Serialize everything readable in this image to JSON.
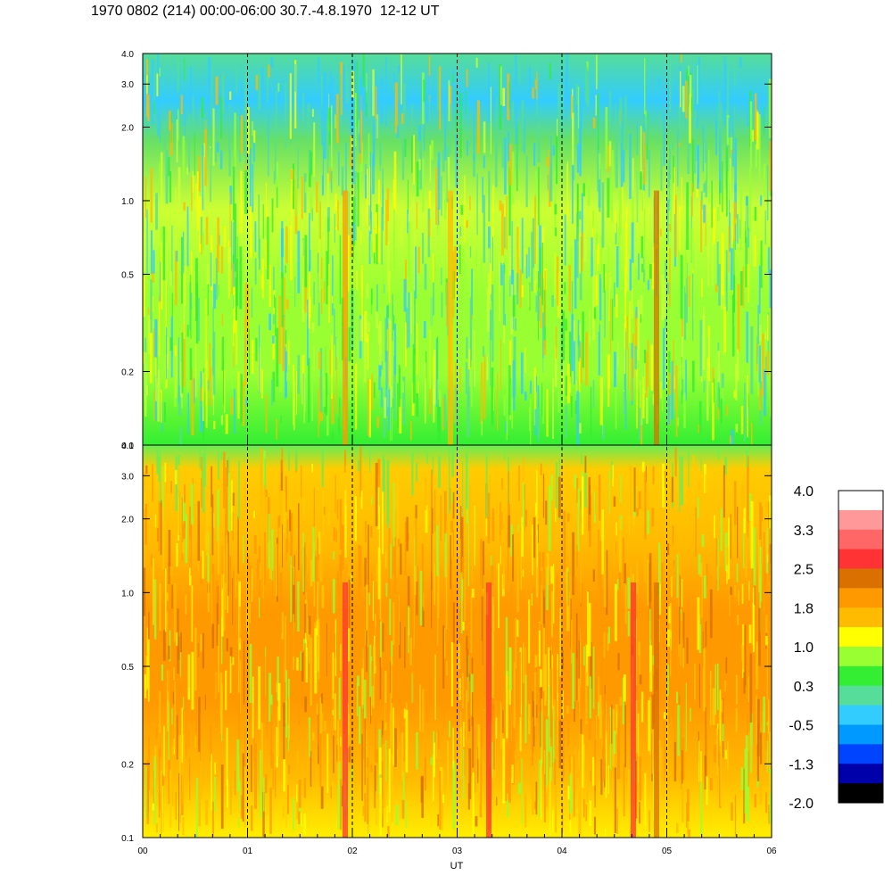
{
  "title": "1970 0802 (214) 00:00-06:00 30.7.-4.8.1970  12-12 UT",
  "chart_data": [
    {
      "type": "heatmap",
      "name": "upper-panel",
      "x_range": [
        "00",
        "06"
      ],
      "y_scale": "log",
      "y_range": [
        0.1,
        4.0
      ],
      "y_ticks": [
        "0.1",
        "0.2",
        "0.5",
        "1.0",
        "2.0",
        "3.0",
        "4.0"
      ],
      "dominant_levels": "green-yellow (0.3 to 1.8), blue near top"
    },
    {
      "type": "heatmap",
      "name": "lower-panel",
      "x_range": [
        "00",
        "06"
      ],
      "y_scale": "log",
      "y_range": [
        0.1,
        4.0
      ],
      "y_ticks": [
        "0.1",
        "0.2",
        "0.5",
        "1.0",
        "2.0",
        "3.0",
        "4.0"
      ],
      "dominant_levels": "yellow-orange (1.0 to 2.5)"
    }
  ],
  "x_axis": {
    "label": "UT",
    "ticks": [
      "00",
      "01",
      "02",
      "03",
      "04",
      "05",
      "06"
    ],
    "dashed_lines_at": [
      1,
      2,
      3,
      4,
      5
    ]
  },
  "colorbar": {
    "labels": [
      "4.0",
      "3.3",
      "2.5",
      "1.8",
      "1.0",
      "0.3",
      "-0.5",
      "-1.3",
      "-2.0"
    ],
    "colors_top_to_bottom": [
      "#ffffff",
      "#ff9999",
      "#ff6666",
      "#ff3333",
      "#d97000",
      "#ff9900",
      "#ffbb00",
      "#ffff00",
      "#99ff33",
      "#33ee33",
      "#55dd99",
      "#33ccff",
      "#0099ff",
      "#0044ff",
      "#0000aa",
      "#000000"
    ]
  }
}
